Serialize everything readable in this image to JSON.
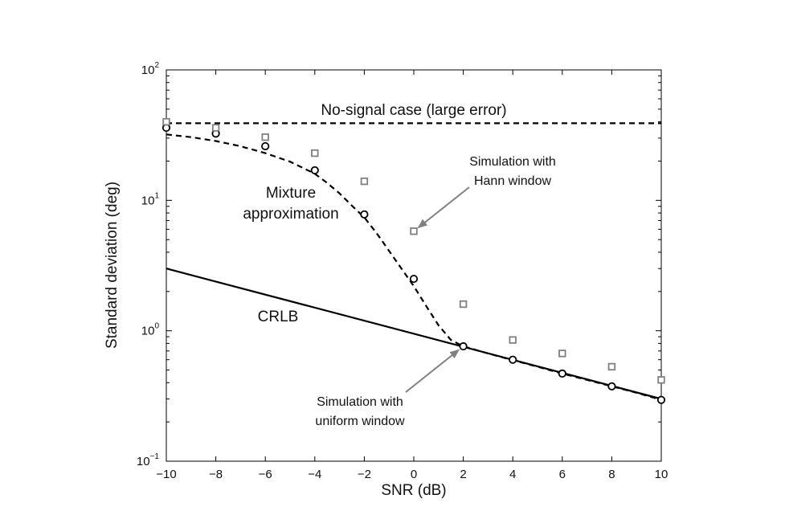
{
  "chart_data": {
    "type": "line",
    "xlabel": "SNR (dB)",
    "ylabel": "Standard deviation (deg)",
    "x_scale": "linear",
    "y_scale": "log",
    "xlim": [
      -10,
      10
    ],
    "ylim": [
      0.1,
      100
    ],
    "x_ticks": [
      -10,
      -8,
      -6,
      -4,
      -2,
      0,
      2,
      4,
      6,
      8,
      10
    ],
    "x_tick_labels": [
      "−10",
      "−8",
      "−6",
      "−4",
      "−2",
      "0",
      "2",
      "4",
      "6",
      "8",
      "10"
    ],
    "y_ticks": [
      {
        "value": 0.1,
        "base": "10",
        "exp": "−1"
      },
      {
        "value": 1,
        "base": "10",
        "exp": "0"
      },
      {
        "value": 10,
        "base": "10",
        "exp": "1"
      },
      {
        "value": 100,
        "base": "10",
        "exp": "2"
      }
    ],
    "grid": false,
    "series": [
      {
        "style": "dashed",
        "color": "#000000",
        "x": [
          -10,
          10
        ],
        "y": [
          39,
          39
        ]
      },
      {
        "style": "dashed",
        "color": "#000000",
        "x": [
          -10,
          -9,
          -8,
          -7,
          -6,
          -5,
          -4,
          -3.5,
          -3,
          -2.5,
          -2,
          -1.5,
          -1,
          -0.5,
          0,
          0.5,
          1,
          1.5,
          2,
          3,
          4,
          5,
          6,
          7,
          8,
          9,
          10
        ],
        "y": [
          32,
          30.5,
          28.5,
          26,
          23,
          19.8,
          16,
          13.6,
          11.3,
          9.1,
          7.4,
          5.6,
          4.1,
          3.0,
          2.2,
          1.55,
          1.1,
          0.85,
          0.76,
          0.67,
          0.595,
          0.53,
          0.47,
          0.42,
          0.375,
          0.335,
          0.295
        ]
      },
      {
        "style": "solid",
        "color": "#000000",
        "x": [
          -10,
          10
        ],
        "y": [
          3.0,
          0.3
        ]
      },
      {
        "style": "markers",
        "marker": "circle",
        "color": "#000000",
        "x": [
          -10,
          -8,
          -6,
          -4,
          -2,
          0,
          2,
          4,
          6,
          8,
          10
        ],
        "y": [
          36,
          32.5,
          26,
          17,
          7.8,
          2.5,
          0.76,
          0.6,
          0.47,
          0.375,
          0.295
        ]
      },
      {
        "style": "markers",
        "marker": "square",
        "color": "#808080",
        "x": [
          -10,
          -8,
          -6,
          -4,
          -2,
          0,
          2,
          4,
          6,
          8,
          10
        ],
        "y": [
          40,
          36,
          30.5,
          23,
          14,
          5.8,
          1.6,
          0.85,
          0.67,
          0.53,
          0.42
        ]
      }
    ],
    "annotations": [
      {
        "lines": [
          "No-signal case (large error)"
        ]
      },
      {
        "lines": [
          "Mixture",
          "approximation"
        ]
      },
      {
        "lines": [
          "CRLB"
        ]
      },
      {
        "lines": [
          "Simulation with",
          "Hann window"
        ],
        "arrow_to": {
          "x": 0,
          "y": 5.8
        }
      },
      {
        "lines": [
          "Simulation with",
          "uniform window"
        ],
        "arrow_to": {
          "x": 2,
          "y": 0.76
        }
      }
    ]
  }
}
